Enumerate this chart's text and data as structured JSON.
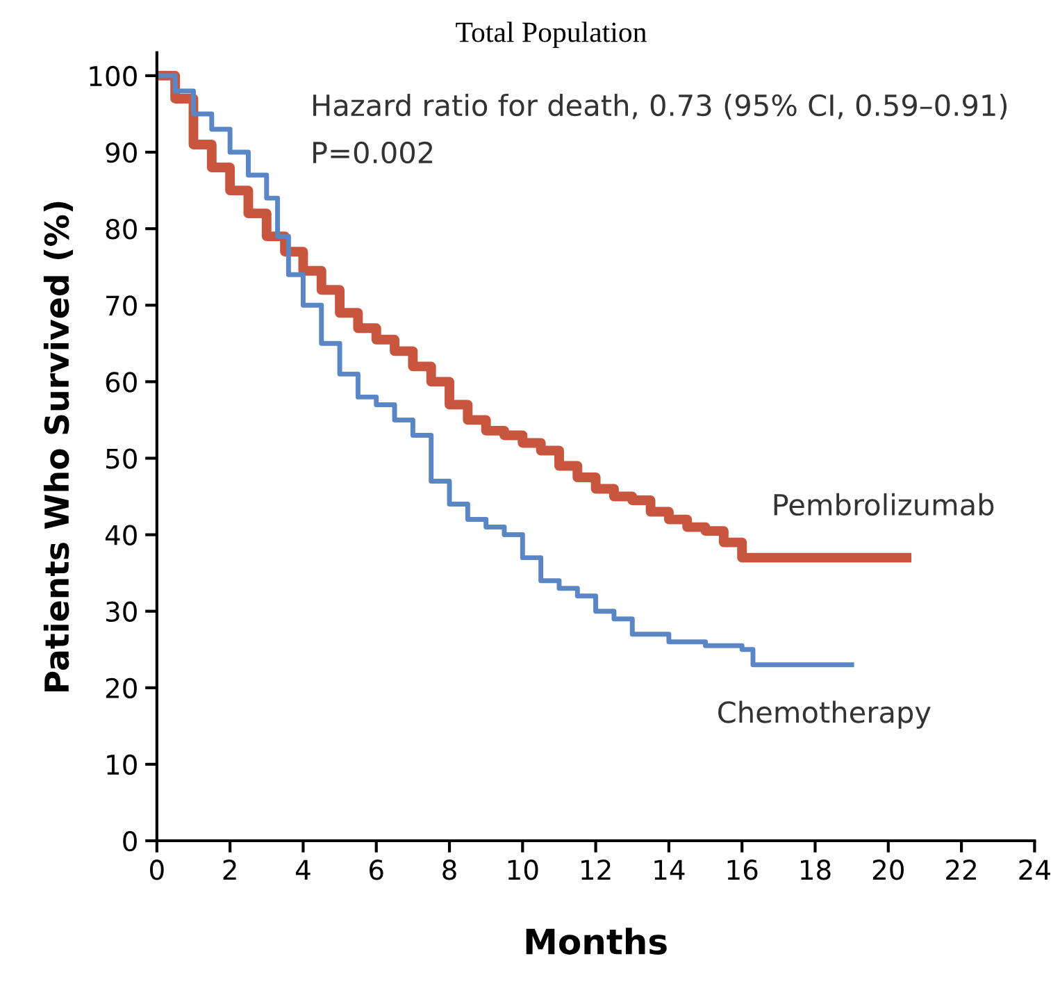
{
  "chart_data": {
    "type": "step",
    "title": "Total Population",
    "xlabel": "Months",
    "ylabel": "Patients Who Survived (%)",
    "xlim": [
      0,
      24
    ],
    "ylim": [
      0,
      103
    ],
    "xticks": [
      0,
      2,
      4,
      6,
      8,
      10,
      12,
      14,
      16,
      18,
      20,
      22,
      24
    ],
    "yticks": [
      0,
      10,
      20,
      30,
      40,
      50,
      60,
      70,
      80,
      90,
      100
    ],
    "grid": false,
    "legend": false,
    "marker": "none",
    "line_style": "solid",
    "annotations": [
      "Hazard ratio for death, 0.73 (95% CI, 0.59–0.91)",
      "P=0.002"
    ],
    "series": [
      {
        "name": "Pembrolizumab",
        "color": "#c8553d",
        "x": [
          0,
          0.5,
          1,
          1.5,
          2,
          2.5,
          3,
          3.5,
          4,
          4.5,
          5,
          5.5,
          6,
          6.5,
          7,
          7.5,
          8,
          8.5,
          9,
          9.5,
          10,
          10.5,
          11,
          11.5,
          12,
          12.5,
          13,
          13.5,
          14,
          14.5,
          15,
          15.5,
          16,
          20.5
        ],
        "values": [
          100,
          97,
          91,
          88,
          85,
          82,
          79,
          77,
          74.5,
          72,
          69,
          67,
          65.5,
          64,
          62,
          60,
          57,
          55,
          53.6,
          53,
          52,
          51,
          49,
          47.5,
          46,
          45,
          44.5,
          43,
          42,
          41,
          40.5,
          39,
          37,
          37
        ]
      },
      {
        "name": "Chemotherapy",
        "color": "#5b86c5",
        "x": [
          0,
          0.5,
          1,
          1.5,
          2,
          2.5,
          3,
          3.3,
          3.6,
          4,
          4.5,
          5,
          5.5,
          6,
          6.5,
          7,
          7.5,
          8,
          8.5,
          9,
          9.5,
          10,
          10.5,
          11,
          11.5,
          12,
          12.5,
          13,
          14,
          15,
          16,
          16.3,
          19
        ],
        "values": [
          100,
          98,
          95,
          93,
          90,
          87,
          84,
          79,
          74,
          70,
          65,
          61,
          58,
          57,
          55,
          53,
          47,
          44,
          42,
          41,
          40,
          37,
          34,
          33,
          32,
          30,
          29,
          27,
          26,
          25.5,
          25,
          23,
          23
        ]
      }
    ]
  }
}
